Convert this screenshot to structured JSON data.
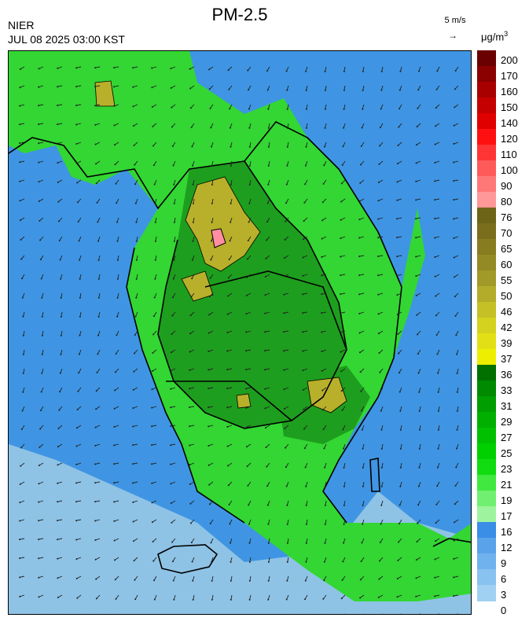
{
  "header": {
    "org": "NIER",
    "datetime": "JUL 08 2025 03:00 KST",
    "title": "PM-2.5",
    "wind_scale": "5 m/s",
    "wind_arrow": "→",
    "unit_prefix": "μg/m",
    "unit_exp": "3"
  },
  "legend": {
    "labels": [
      "200",
      "170",
      "160",
      "150",
      "140",
      "120",
      "110",
      "100",
      "90",
      "80",
      "76",
      "70",
      "65",
      "60",
      "55",
      "50",
      "46",
      "42",
      "39",
      "37",
      "36",
      "33",
      "31",
      "29",
      "27",
      "25",
      "23",
      "21",
      "19",
      "17",
      "16",
      "12",
      "9",
      "6",
      "3",
      "0"
    ],
    "colors": [
      "#6b0000",
      "#8b0000",
      "#a80000",
      "#c40000",
      "#e00000",
      "#ff1010",
      "#ff3434",
      "#ff5a5a",
      "#ff7878",
      "#ff9898",
      "#6e6418",
      "#7a6e1c",
      "#877c20",
      "#938a24",
      "#a19a28",
      "#b3ac2a",
      "#c4c026",
      "#d4d21e",
      "#e2e014",
      "#eeee00",
      "#007000",
      "#008a00",
      "#009e00",
      "#00b000",
      "#00c000",
      "#00d000",
      "#10dc10",
      "#40e840",
      "#70f070",
      "#9ef49e",
      "#3a8ee6",
      "#5aa2ea",
      "#70b2ee",
      "#88c2f0",
      "#a0d0f2"
    ]
  },
  "map": {
    "sea_color": "#8ec3e6",
    "clean_air_color": "#3f95e3",
    "land_green": "#33d633",
    "land_dark_green": "#1e9e1e",
    "hotspot_olive": "#b8b02a",
    "peak_pink": "#ff8fa0",
    "coast_color": "#000000"
  }
}
